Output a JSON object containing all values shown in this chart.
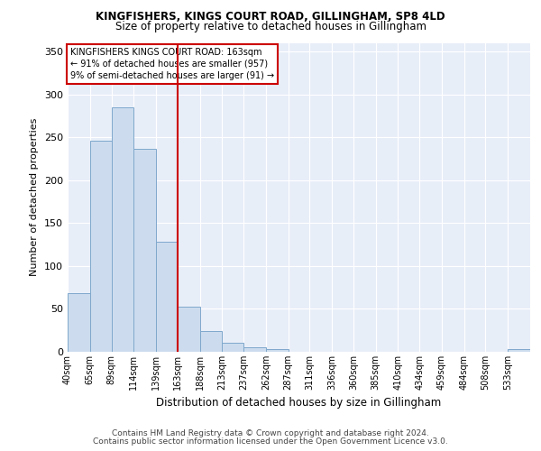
{
  "title1": "KINGFISHERS, KINGS COURT ROAD, GILLINGHAM, SP8 4LD",
  "title2": "Size of property relative to detached houses in Gillingham",
  "xlabel": "Distribution of detached houses by size in Gillingham",
  "ylabel": "Number of detached properties",
  "footer1": "Contains HM Land Registry data © Crown copyright and database right 2024.",
  "footer2": "Contains public sector information licensed under the Open Government Licence v3.0.",
  "annotation_line1": "KINGFISHERS KINGS COURT ROAD: 163sqm",
  "annotation_line2": "← 91% of detached houses are smaller (957)",
  "annotation_line3": "9% of semi-detached houses are larger (91) →",
  "bar_color": "#ccdcee",
  "bar_edgecolor": "#7fa8cc",
  "vline_color": "#cc0000",
  "annotation_box_color": "#cc0000",
  "background_color": "#e8eef8",
  "categories": [
    "40sqm",
    "65sqm",
    "89sqm",
    "114sqm",
    "139sqm",
    "163sqm",
    "188sqm",
    "213sqm",
    "237sqm",
    "262sqm",
    "287sqm",
    "311sqm",
    "336sqm",
    "360sqm",
    "385sqm",
    "410sqm",
    "434sqm",
    "459sqm",
    "484sqm",
    "508sqm",
    "533sqm"
  ],
  "values": [
    68,
    246,
    285,
    236,
    128,
    53,
    24,
    10,
    5,
    3,
    0,
    0,
    0,
    0,
    0,
    0,
    0,
    0,
    0,
    0,
    3
  ],
  "bin_edges": [
    40,
    65,
    89,
    114,
    139,
    163,
    188,
    213,
    237,
    262,
    287,
    311,
    336,
    360,
    385,
    410,
    434,
    459,
    484,
    508,
    533,
    558
  ],
  "ylim": [
    0,
    360
  ],
  "yticks": [
    0,
    50,
    100,
    150,
    200,
    250,
    300,
    350
  ],
  "vline_x": 163,
  "title1_fontsize": 8.5,
  "title2_fontsize": 8.5,
  "ylabel_fontsize": 8,
  "xlabel_fontsize": 8.5,
  "tick_fontsize": 8,
  "xtick_fontsize": 7,
  "annot_fontsize": 7,
  "footer_fontsize": 6.5
}
